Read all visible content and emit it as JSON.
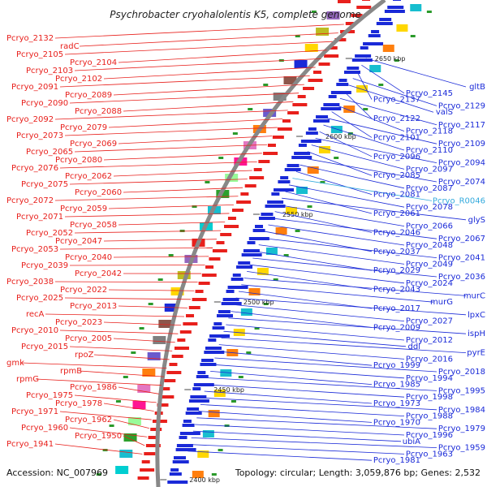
{
  "title": "Psychrobacter cryohalolentis K5, complete genome",
  "footer": {
    "accession": "Accession: NC_007969",
    "topology": "Topology: circular; Length: 3,059,876 bp; Genes: 2,532"
  },
  "colors": {
    "forward": "#e8201c",
    "reverse": "#1a2ad8",
    "rna": "#33aadd",
    "backbone": "#888888"
  },
  "ticks": [
    "2650 kbp",
    "2600 kbp",
    "2550 kbp",
    "2500 kbp",
    "2450 kbp",
    "2400 kbp"
  ],
  "left_labels": [
    "Pcryo_2132",
    "radC",
    "Pcryo_2105",
    "Pcryo_2104",
    "Pcryo_2103",
    "Pcryo_2102",
    "Pcryo_2091",
    "Pcryo_2089",
    "Pcryo_2090",
    "Pcryo_2088",
    "Pcryo_2092",
    "Pcryo_2079",
    "Pcryo_2073",
    "Pcryo_2069",
    "Pcryo_2065",
    "Pcryo_2080",
    "Pcryo_2076",
    "Pcryo_2062",
    "Pcryo_2075",
    "Pcryo_2060",
    "Pcryo_2072",
    "Pcryo_2059",
    "Pcryo_2071",
    "Pcryo_2058",
    "Pcryo_2052",
    "Pcryo_2047",
    "Pcryo_2053",
    "Pcryo_2040",
    "Pcryo_2039",
    "Pcryo_2042",
    "Pcryo_2038",
    "Pcryo_2022",
    "Pcryo_2025",
    "Pcryo_2013",
    "recA",
    "Pcryo_2023",
    "Pcryo_2010",
    "Pcryo_2005",
    "Pcryo_2015",
    "rpoZ",
    "gmk",
    "rpmB",
    "rpmG",
    "Pcryo_1986",
    "Pcryo_1975",
    "Pcryo_1978",
    "Pcryo_1971",
    "Pcryo_1962",
    "Pcryo_1960",
    "Pcryo_1950",
    "Pcryo_1941"
  ],
  "right_labels": [
    "gltB",
    "Pcryo_2145",
    "Pcryo_2137",
    "Pcryo_2129",
    "valS",
    "Pcryo_2122",
    "Pcryo_2117",
    "Pcryo_2118",
    "Pcryo_2101",
    "Pcryo_2109",
    "Pcryo_2110",
    "Pcryo_2096",
    "Pcryo_2094",
    "Pcryo_2097",
    "Pcryo_2085",
    "Pcryo_2074",
    "Pcryo_2087",
    "Pcryo_2081",
    "Pcryo_R0046",
    "Pcryo_2078",
    "Pcryo_2061",
    "glyS",
    "Pcryo_2066",
    "Pcryo_2046",
    "Pcryo_2067",
    "Pcryo_2048",
    "Pcryo_2037",
    "Pcryo_2041",
    "Pcryo_2049",
    "Pcryo_2029",
    "Pcryo_2036",
    "Pcryo_2024",
    "Pcryo_2043",
    "murC",
    "murG",
    "Pcryo_2017",
    "lpxC",
    "Pcryo_2027",
    "Pcryo_2009",
    "ispH",
    "Pcryo_2012",
    "ddl",
    "pyrE",
    "Pcryo_2016",
    "Pcryo_1999",
    "Pcryo_2018",
    "Pcryo_1994",
    "Pcryo_1985",
    "Pcryo_1995",
    "Pcryo_1998",
    "Pcryo_1973",
    "Pcryo_1984",
    "Pcryo_1988",
    "Pcryo_1970",
    "Pcryo_1979",
    "Pcryo_1996",
    "ubiA",
    "Pcryo_1959",
    "Pcryo_1963",
    "Pcryo_1981"
  ]
}
